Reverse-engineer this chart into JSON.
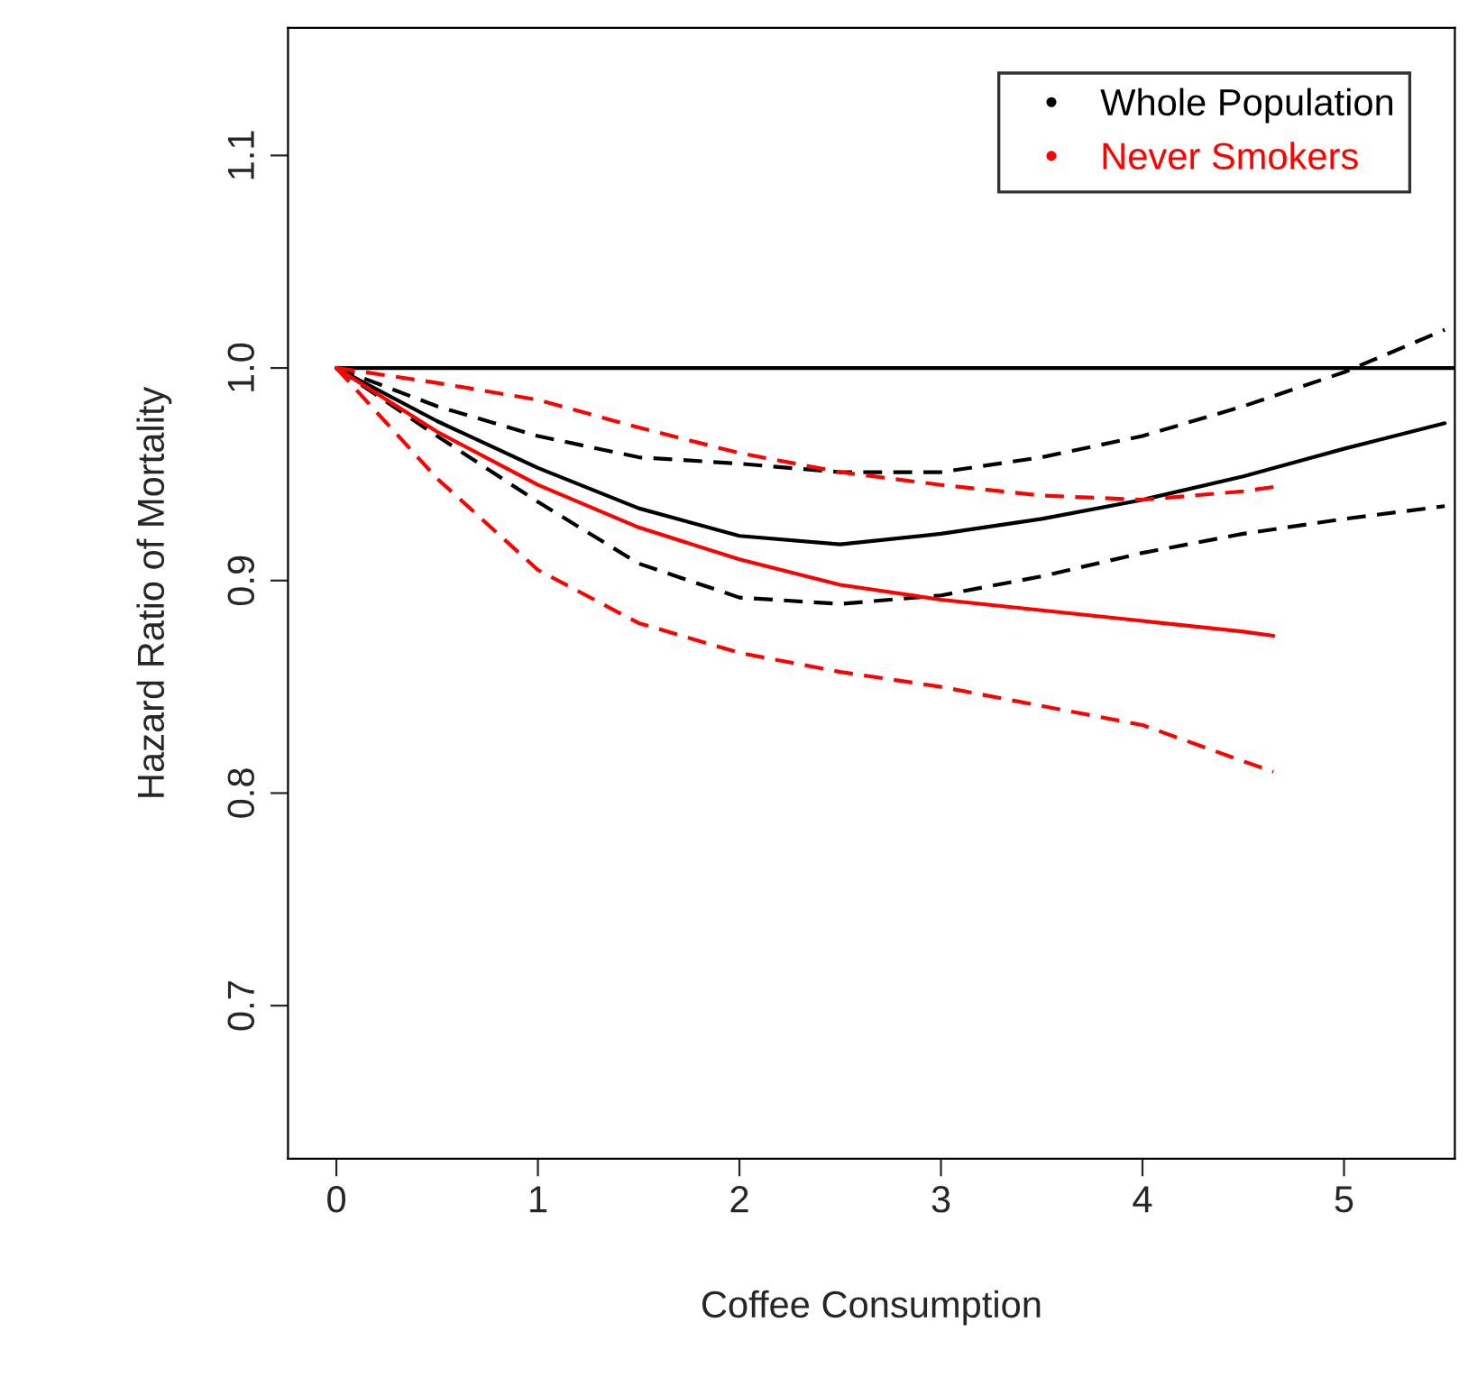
{
  "chart_data": {
    "type": "line",
    "xlabel": "Coffee Consumption",
    "ylabel": "Hazard Ratio of Mortality",
    "xlim": [
      -0.24,
      5.55
    ],
    "ylim": [
      0.628,
      1.16
    ],
    "xticks": [
      0,
      1,
      2,
      3,
      4,
      5
    ],
    "yticks": [
      0.7,
      0.8,
      0.9,
      {
        "value": 1.0,
        "label": "1.0"
      },
      1.1
    ],
    "grid": false,
    "legend": "top right",
    "series": [
      {
        "color": "#000000",
        "line_style": "solid",
        "x": [
          0,
          5.55
        ],
        "values": [
          1.0,
          1.0
        ]
      },
      {
        "name": "Whole Population",
        "color": "#000000",
        "line_style": "solid",
        "x": [
          0,
          0.5,
          1,
          1.5,
          2,
          2.5,
          3,
          3.5,
          4,
          4.5,
          5,
          5.5
        ],
        "values": [
          1.0,
          0.975,
          0.953,
          0.934,
          0.921,
          0.917,
          0.922,
          0.929,
          0.938,
          0.949,
          0.962,
          0.974
        ]
      },
      {
        "color": "#000000",
        "line_style": "dashed",
        "x": [
          0,
          0.5,
          1,
          1.5,
          2,
          2.5,
          3,
          3.5,
          4,
          4.5,
          5,
          5.5
        ],
        "values": [
          1.0,
          0.982,
          0.968,
          0.958,
          0.955,
          0.951,
          0.951,
          0.958,
          0.968,
          0.982,
          0.998,
          1.018
        ]
      },
      {
        "color": "#000000",
        "line_style": "dashed",
        "x": [
          0,
          0.5,
          1,
          1.5,
          2,
          2.5,
          3,
          3.5,
          4,
          4.5,
          5,
          5.5
        ],
        "values": [
          1.0,
          0.968,
          0.937,
          0.908,
          0.892,
          0.889,
          0.893,
          0.902,
          0.913,
          0.922,
          0.929,
          0.935
        ]
      },
      {
        "name": "Never Smokers",
        "color": "#ff0000",
        "line_style": "solid",
        "x": [
          0,
          0.5,
          1,
          1.5,
          2,
          2.5,
          3,
          3.5,
          4,
          4.5,
          4.65
        ],
        "values": [
          1.0,
          0.97,
          0.945,
          0.925,
          0.91,
          0.898,
          0.891,
          0.886,
          0.881,
          0.876,
          0.874
        ]
      },
      {
        "color": "#ff0000",
        "line_style": "dashed",
        "x": [
          0,
          0.5,
          1,
          1.5,
          2,
          2.5,
          3,
          3.5,
          4,
          4.5,
          4.65
        ],
        "values": [
          1.0,
          0.993,
          0.985,
          0.972,
          0.96,
          0.951,
          0.945,
          0.94,
          0.938,
          0.942,
          0.944
        ]
      },
      {
        "color": "#ff0000",
        "line_style": "dashed",
        "x": [
          0,
          0.5,
          1,
          1.5,
          2,
          2.5,
          3,
          3.5,
          4,
          4.5,
          4.65
        ],
        "values": [
          1.0,
          0.948,
          0.905,
          0.88,
          0.866,
          0.857,
          0.85,
          0.841,
          0.832,
          0.815,
          0.81
        ]
      }
    ]
  }
}
